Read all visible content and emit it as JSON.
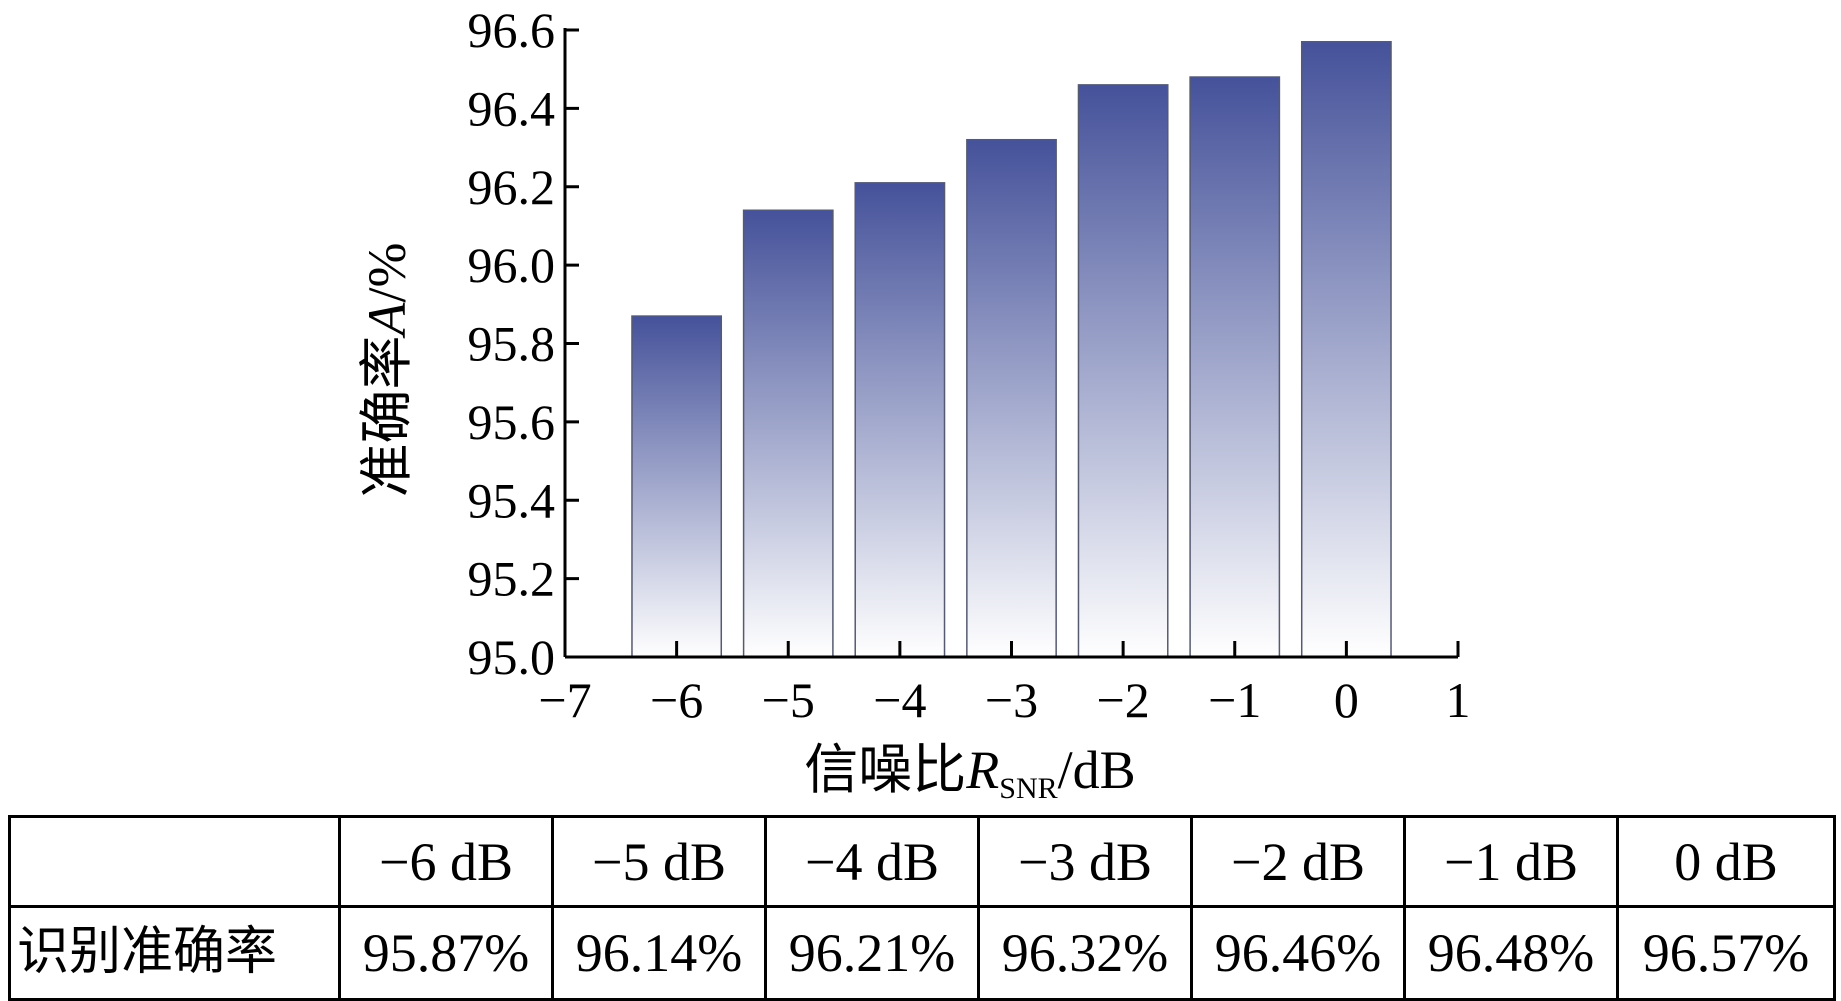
{
  "chart_data": {
    "type": "bar",
    "x": [
      -6,
      -5,
      -4,
      -3,
      -2,
      -1,
      0
    ],
    "values": [
      95.87,
      96.14,
      96.21,
      96.32,
      96.46,
      96.48,
      96.57
    ],
    "xlim": [
      -7,
      1
    ],
    "ylim": [
      95.0,
      96.6
    ],
    "x_ticks": [
      -7,
      -6,
      -5,
      -4,
      -3,
      -2,
      -1,
      0,
      1
    ],
    "x_tick_labels": [
      "−7",
      "−6",
      "−5",
      "−4",
      "−3",
      "−2",
      "−1",
      "0",
      "1"
    ],
    "y_ticks": [
      95.0,
      95.2,
      95.4,
      95.6,
      95.8,
      96.0,
      96.2,
      96.4,
      96.6
    ],
    "y_tick_labels": [
      "95.0",
      "95.2",
      "95.4",
      "95.6",
      "95.8",
      "96.0",
      "96.2",
      "96.4",
      "96.6"
    ],
    "xlabel": {
      "main": "信噪比",
      "var": "R",
      "sub": "SNR",
      "unit": "/dB"
    },
    "ylabel": {
      "main": "准确率",
      "var": "A",
      "unit": "/%"
    },
    "grid": false,
    "bar_color_top": "#45529a",
    "bar_color_bottom": "#ffffff"
  },
  "table": {
    "corner": "",
    "header_cells": [
      "−6 dB",
      "−5 dB",
      "−4 dB",
      "−3 dB",
      "−2 dB",
      "−1 dB",
      "0 dB"
    ],
    "row_label": "识别准确率",
    "value_cells": [
      "95.87%",
      "96.14%",
      "96.21%",
      "96.32%",
      "96.46%",
      "96.48%",
      "96.57%"
    ]
  }
}
